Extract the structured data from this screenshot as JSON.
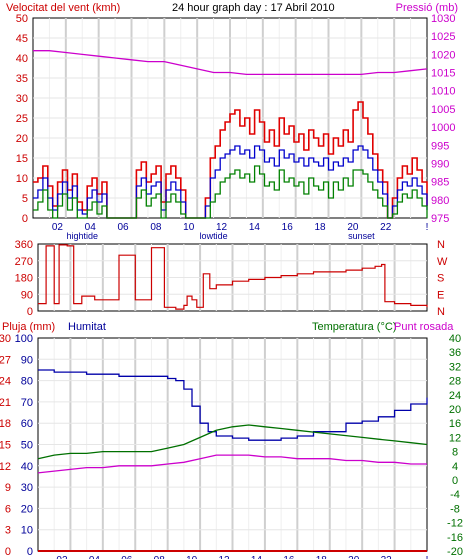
{
  "header": {
    "wind_title": "Velocitat del vent (kmh)",
    "graph_title": "24 hour graph day : 17 Abril 2010",
    "pressure_title": "Pressió (mb)",
    "rain_title": "Pluja (mm)",
    "humidity_title": "Humitat",
    "temp_title": "Temperatura (°C)",
    "dew_title": "Punt rosada"
  },
  "colors": {
    "wind_max": "#e00000",
    "wind_avg": "#0000cc",
    "wind_min": "#008000",
    "pressure": "#cc00cc",
    "direction": "#cc0000",
    "humidity": "#0000aa",
    "temperature": "#007000",
    "dew": "#cc00cc",
    "rain": "#cc0000",
    "grid_v": "#cfcfcf",
    "grid_h": "#e6e6e6"
  },
  "x_ticks": [
    "02",
    "04",
    "06",
    "08",
    "10",
    "12",
    "14",
    "16",
    "18",
    "20",
    "22",
    "!"
  ],
  "x_markers": [
    {
      "text": "hightide",
      "at": "03"
    },
    {
      "text": "lowtide",
      "at": "11"
    },
    {
      "text": "sunset",
      "at": "20"
    }
  ],
  "chart_data": [
    {
      "type": "line",
      "id": "wind",
      "x_range": [
        0,
        24
      ],
      "ylim_left": [
        0,
        50
      ],
      "yticks_left": [
        "0",
        "5",
        "10",
        "15",
        "20",
        "25",
        "30",
        "35",
        "40",
        "45",
        "50"
      ],
      "ylim_right": [
        975,
        1030
      ],
      "yticks_right": [
        "975",
        "980",
        "985",
        "990",
        "995",
        "1000",
        "1005",
        "1010",
        "1015",
        "1020",
        "1025",
        "1030"
      ],
      "series": [
        {
          "key": "pressure",
          "axis": "right",
          "x": [
            0,
            1,
            2,
            3,
            4,
            5,
            6,
            7,
            8,
            9,
            10,
            11,
            12,
            13,
            14,
            15,
            16,
            17,
            18,
            19,
            20,
            21,
            22,
            23,
            24
          ],
          "y": [
            1021,
            1021,
            1020.5,
            1020,
            1019.5,
            1019,
            1018.5,
            1018,
            1018,
            1017,
            1016,
            1015,
            1015,
            1014.5,
            1014.5,
            1014.5,
            1014.5,
            1014.5,
            1014.5,
            1014.5,
            1014.5,
            1015,
            1015,
            1015.5,
            1016
          ]
        },
        {
          "key": "wind_max",
          "axis": "left",
          "x": [
            0,
            0.3,
            0.6,
            0.9,
            1.2,
            1.5,
            1.8,
            2.1,
            2.4,
            2.7,
            3.0,
            3.3,
            3.6,
            3.9,
            4.2,
            4.5,
            4.8,
            5.1,
            5.4,
            5.7,
            6.0,
            6.3,
            6.6,
            6.9,
            7.2,
            7.5,
            7.8,
            8.1,
            8.4,
            8.7,
            9.0,
            9.3,
            9.6,
            9.9,
            10.2,
            10.5,
            10.8,
            11.1,
            11.4,
            11.7,
            12.0,
            12.3,
            12.6,
            12.9,
            13.2,
            13.5,
            13.8,
            14.1,
            14.4,
            14.7,
            15.0,
            15.3,
            15.6,
            15.9,
            16.2,
            16.5,
            16.8,
            17.1,
            17.4,
            17.7,
            18.0,
            18.3,
            18.6,
            18.9,
            19.2,
            19.5,
            19.8,
            20.1,
            20.4,
            20.7,
            21.0,
            21.3,
            21.6,
            21.9,
            22.2,
            22.5,
            22.8,
            23.1,
            23.4,
            23.7,
            24.0
          ],
          "y": [
            9,
            10,
            13,
            8,
            3,
            9,
            12,
            7,
            11,
            4,
            2,
            8,
            10,
            6,
            9,
            0,
            0,
            0,
            0,
            0,
            0,
            12,
            14,
            9,
            11,
            13,
            4,
            11,
            13,
            10,
            7,
            0,
            0,
            0,
            0,
            5,
            15,
            18,
            22,
            24,
            26,
            27,
            23,
            25,
            21,
            27,
            24,
            19,
            22,
            18,
            25,
            21,
            23,
            19,
            21,
            17,
            22,
            20,
            18,
            21,
            16,
            20,
            18,
            22,
            19,
            27,
            29,
            25,
            21,
            16,
            12,
            9,
            0,
            5,
            10,
            13,
            11,
            15,
            12,
            9,
            3
          ]
        },
        {
          "key": "wind_avg",
          "axis": "left",
          "x": [
            0,
            0.3,
            0.6,
            0.9,
            1.2,
            1.5,
            1.8,
            2.1,
            2.4,
            2.7,
            3.0,
            3.3,
            3.6,
            3.9,
            4.2,
            4.5,
            4.8,
            5.1,
            5.4,
            5.7,
            6.0,
            6.3,
            6.6,
            6.9,
            7.2,
            7.5,
            7.8,
            8.1,
            8.4,
            8.7,
            9.0,
            9.3,
            9.6,
            9.9,
            10.2,
            10.5,
            10.8,
            11.1,
            11.4,
            11.7,
            12.0,
            12.3,
            12.6,
            12.9,
            13.2,
            13.5,
            13.8,
            14.1,
            14.4,
            14.7,
            15.0,
            15.3,
            15.6,
            15.9,
            16.2,
            16.5,
            16.8,
            17.1,
            17.4,
            17.7,
            18.0,
            18.3,
            18.6,
            18.9,
            19.2,
            19.5,
            19.8,
            20.1,
            20.4,
            20.7,
            21.0,
            21.3,
            21.6,
            21.9,
            22.2,
            22.5,
            22.8,
            23.1,
            23.4,
            23.7,
            24.0
          ],
          "y": [
            5,
            7,
            10,
            5,
            2,
            6,
            9,
            5,
            8,
            2,
            1,
            5,
            7,
            4,
            6,
            0,
            0,
            0,
            0,
            0,
            0,
            8,
            10,
            6,
            8,
            9,
            2,
            7,
            9,
            7,
            4,
            0,
            0,
            0,
            0,
            3,
            10,
            12,
            15,
            16,
            17,
            18,
            16,
            17,
            15,
            18,
            17,
            14,
            15,
            13,
            17,
            15,
            16,
            14,
            15,
            13,
            15,
            14,
            13,
            15,
            12,
            14,
            13,
            15,
            14,
            17,
            18,
            17,
            15,
            12,
            9,
            6,
            0,
            3,
            7,
            9,
            8,
            10,
            8,
            6,
            2
          ]
        },
        {
          "key": "wind_min",
          "axis": "left",
          "x": [
            0,
            0.3,
            0.6,
            0.9,
            1.2,
            1.5,
            1.8,
            2.1,
            2.4,
            2.7,
            3.0,
            3.3,
            3.6,
            3.9,
            4.2,
            4.5,
            4.8,
            5.1,
            5.4,
            5.7,
            6.0,
            6.3,
            6.6,
            6.9,
            7.2,
            7.5,
            7.8,
            8.1,
            8.4,
            8.7,
            9.0,
            9.3,
            9.6,
            9.9,
            10.2,
            10.5,
            10.8,
            11.1,
            11.4,
            11.7,
            12.0,
            12.3,
            12.6,
            12.9,
            13.2,
            13.5,
            13.8,
            14.1,
            14.4,
            14.7,
            15.0,
            15.3,
            15.6,
            15.9,
            16.2,
            16.5,
            16.8,
            17.1,
            17.4,
            17.7,
            18.0,
            18.3,
            18.6,
            18.9,
            19.2,
            19.5,
            19.8,
            20.1,
            20.4,
            20.7,
            21.0,
            21.3,
            21.6,
            21.9,
            22.2,
            22.5,
            22.8,
            23.1,
            23.4,
            23.7,
            24.0
          ],
          "y": [
            2,
            4,
            7,
            2,
            0,
            3,
            6,
            2,
            5,
            0,
            0,
            2,
            4,
            1,
            3,
            0,
            0,
            0,
            0,
            0,
            0,
            5,
            7,
            3,
            5,
            6,
            0,
            4,
            6,
            4,
            1,
            0,
            0,
            0,
            0,
            0,
            4,
            6,
            9,
            10,
            11,
            12,
            10,
            11,
            9,
            13,
            11,
            8,
            9,
            7,
            12,
            9,
            10,
            8,
            9,
            6,
            10,
            8,
            7,
            9,
            5,
            9,
            7,
            10,
            8,
            12,
            12,
            11,
            9,
            7,
            5,
            3,
            0,
            1,
            4,
            6,
            5,
            7,
            5,
            3,
            0
          ]
        }
      ]
    },
    {
      "type": "line",
      "id": "direction",
      "x_range": [
        0,
        24
      ],
      "ylim_left": [
        0,
        360
      ],
      "yticks_left": [
        "0",
        "90",
        "180",
        "270",
        "360"
      ],
      "yticks_right": [
        "N",
        "E",
        "S",
        "W",
        "N"
      ],
      "series": [
        {
          "key": "direction",
          "axis": "left",
          "x": [
            0,
            0.5,
            1.0,
            1.3,
            1.8,
            2.2,
            2.7,
            3.5,
            4.2,
            4.8,
            5.0,
            5.5,
            6.0,
            6.5,
            7.0,
            7.3,
            7.8,
            8.5,
            9.0,
            9.2,
            9.5,
            9.8,
            10.2,
            10.6,
            11.0,
            12.0,
            13.0,
            14.0,
            15.0,
            16.0,
            17.0,
            18.0,
            19.0,
            20.0,
            20.8,
            21.2,
            21.4,
            22.0,
            23.0,
            24.0
          ],
          "y": [
            40,
            350,
            40,
            355,
            350,
            40,
            80,
            60,
            60,
            60,
            300,
            300,
            60,
            60,
            340,
            340,
            20,
            10,
            30,
            80,
            60,
            20,
            200,
            120,
            140,
            160,
            170,
            180,
            190,
            200,
            210,
            210,
            220,
            230,
            240,
            250,
            50,
            40,
            30,
            20
          ]
        }
      ]
    },
    {
      "type": "line",
      "id": "humidity-temperature",
      "x_range": [
        0,
        24
      ],
      "ylim_left_outer": [
        0,
        30
      ],
      "yticks_left_outer": [
        "0",
        "3",
        "6",
        "9",
        "12",
        "15",
        "18",
        "21",
        "24",
        "27",
        "30"
      ],
      "ylim_left_inner": [
        0,
        100
      ],
      "yticks_left_inner": [
        "0",
        "10",
        "20",
        "30",
        "40",
        "50",
        "60",
        "70",
        "80",
        "90",
        "100"
      ],
      "ylim_right": [
        -20,
        40
      ],
      "yticks_right": [
        "-20",
        "-16",
        "-12",
        "-8",
        "-4",
        "0",
        "4",
        "8",
        "12",
        "16",
        "20",
        "24",
        "28",
        "32",
        "36",
        "40"
      ],
      "series": [
        {
          "key": "humidity",
          "axis": "left_inner",
          "x": [
            0,
            1,
            2,
            3,
            4,
            5,
            6,
            7,
            8,
            8.5,
            9,
            9.5,
            10,
            10.5,
            11,
            12,
            13,
            14,
            15,
            16,
            17,
            18,
            19,
            20,
            21,
            22,
            23,
            24
          ],
          "y": [
            85,
            84,
            84,
            83,
            83,
            82,
            82,
            82,
            81,
            80,
            76,
            68,
            60,
            56,
            54,
            53,
            52,
            52,
            53,
            54,
            56,
            56,
            60,
            61,
            63,
            66,
            69,
            72
          ]
        },
        {
          "key": "temperature",
          "axis": "right",
          "x": [
            0,
            1,
            2,
            3,
            4,
            5,
            6,
            7,
            8,
            9,
            10,
            11,
            12,
            13,
            14,
            15,
            16,
            17,
            18,
            19,
            20,
            21,
            22,
            23,
            24
          ],
          "y": [
            6,
            7,
            7.5,
            7.5,
            8,
            8,
            8,
            8,
            9,
            10,
            12,
            14,
            15,
            15.5,
            15,
            14.5,
            14,
            13.5,
            13,
            12.5,
            12,
            11.5,
            11,
            10.5,
            10
          ]
        },
        {
          "key": "dew",
          "axis": "right",
          "x": [
            0,
            1,
            2,
            3,
            4,
            5,
            6,
            7,
            8,
            9,
            10,
            11,
            12,
            13,
            14,
            15,
            16,
            17,
            18,
            19,
            20,
            21,
            22,
            23,
            24
          ],
          "y": [
            2,
            2.5,
            3,
            3.5,
            3.5,
            4,
            4,
            4,
            4.5,
            5,
            6,
            7,
            7,
            7,
            6.5,
            6.5,
            6,
            6,
            6,
            5.5,
            5.5,
            5,
            5,
            4.5,
            4.5
          ]
        },
        {
          "key": "rain",
          "axis": "left_outer",
          "x": [
            0,
            24
          ],
          "y": [
            0,
            0
          ]
        }
      ]
    }
  ]
}
